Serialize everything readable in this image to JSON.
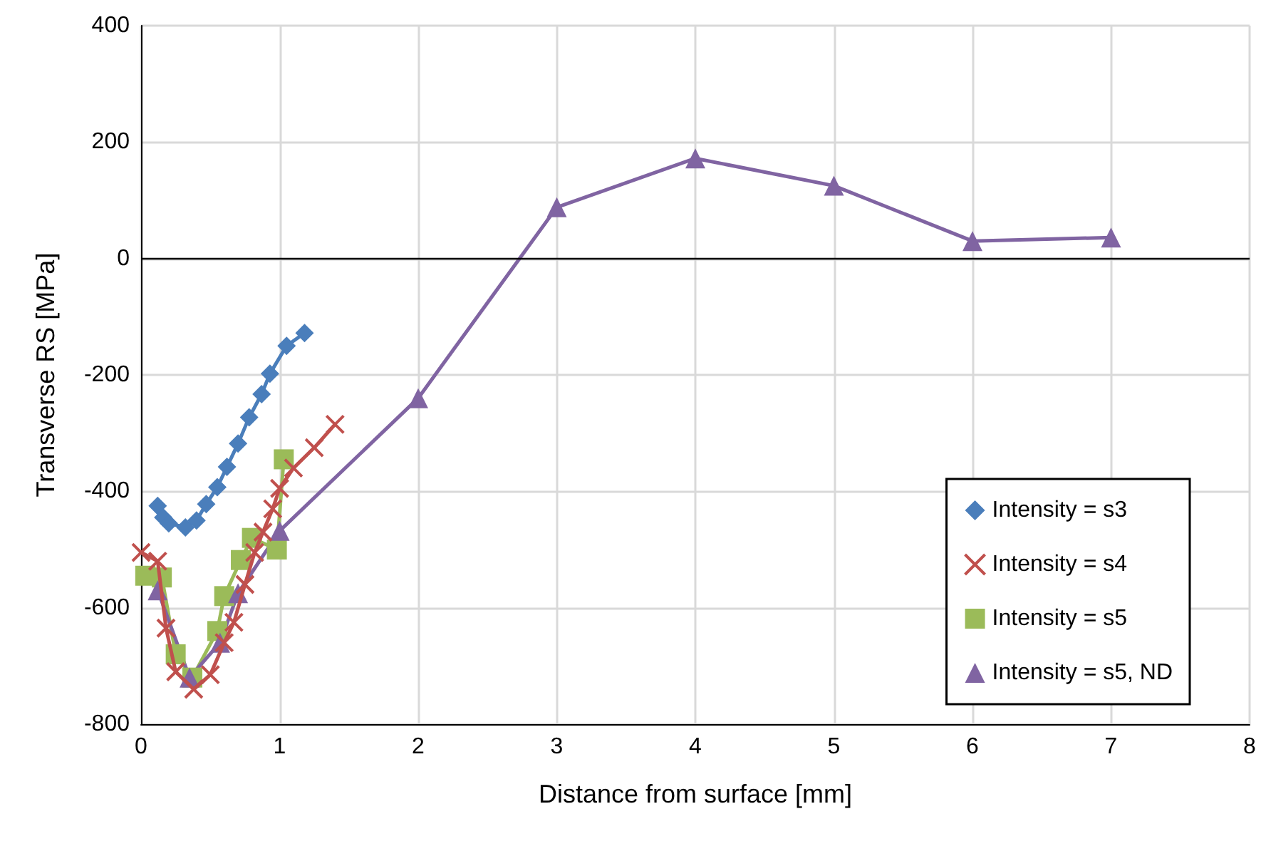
{
  "chart_data": {
    "type": "line",
    "xlabel": "Distance from surface [mm]",
    "ylabel": "Transverse RS [MPa]",
    "xlim": [
      0,
      8
    ],
    "xticks": [
      0,
      1,
      2,
      3,
      4,
      5,
      6,
      7,
      8
    ],
    "ylim": [
      -800,
      400
    ],
    "yticks": [
      -800,
      -600,
      -400,
      -200,
      0,
      200,
      400
    ],
    "grid": true,
    "legend": "bottom right",
    "ref_lines": [
      {
        "axis": "y",
        "value": 0,
        "color": "#000000"
      }
    ],
    "series": [
      {
        "name": "Intensity = s3",
        "color": "#4a7ebb",
        "marker": "diamond",
        "x": [
          0.12,
          0.16,
          0.2,
          0.32,
          0.4,
          0.47,
          0.55,
          0.62,
          0.7,
          0.78,
          0.87,
          0.93,
          1.05,
          1.18
        ],
        "values": [
          -425,
          -445,
          -455,
          -462,
          -450,
          -422,
          -393,
          -358,
          -318,
          -273,
          -233,
          -198,
          -150,
          -128
        ]
      },
      {
        "name": "Intensity = s4",
        "color": "#c0504d",
        "marker": "cross",
        "x": [
          0.0,
          0.12,
          0.18,
          0.25,
          0.38,
          0.5,
          0.6,
          0.67,
          0.75,
          0.82,
          0.88,
          0.95,
          1.0,
          1.1,
          1.25,
          1.4
        ],
        "values": [
          -505,
          -520,
          -635,
          -710,
          -740,
          -715,
          -660,
          -625,
          -560,
          -505,
          -470,
          -430,
          -395,
          -360,
          -325,
          -285
        ]
      },
      {
        "name": "Intensity = s5",
        "color": "#9bbb59",
        "marker": "square",
        "x": [
          0.03,
          0.15,
          0.25,
          0.37,
          0.55,
          0.6,
          0.72,
          0.8,
          0.98,
          1.03
        ],
        "values": [
          -545,
          -548,
          -680,
          -720,
          -640,
          -580,
          -518,
          -480,
          -500,
          -345
        ]
      },
      {
        "name": "Intensity = s5, ND",
        "color": "#8064a2",
        "marker": "triangle",
        "x": [
          0.12,
          0.35,
          0.57,
          0.7,
          1,
          2,
          3,
          4,
          5,
          6,
          7
        ],
        "values": [
          -570,
          -720,
          -660,
          -575,
          -468,
          -240,
          88,
          172,
          125,
          30,
          36
        ]
      }
    ]
  }
}
